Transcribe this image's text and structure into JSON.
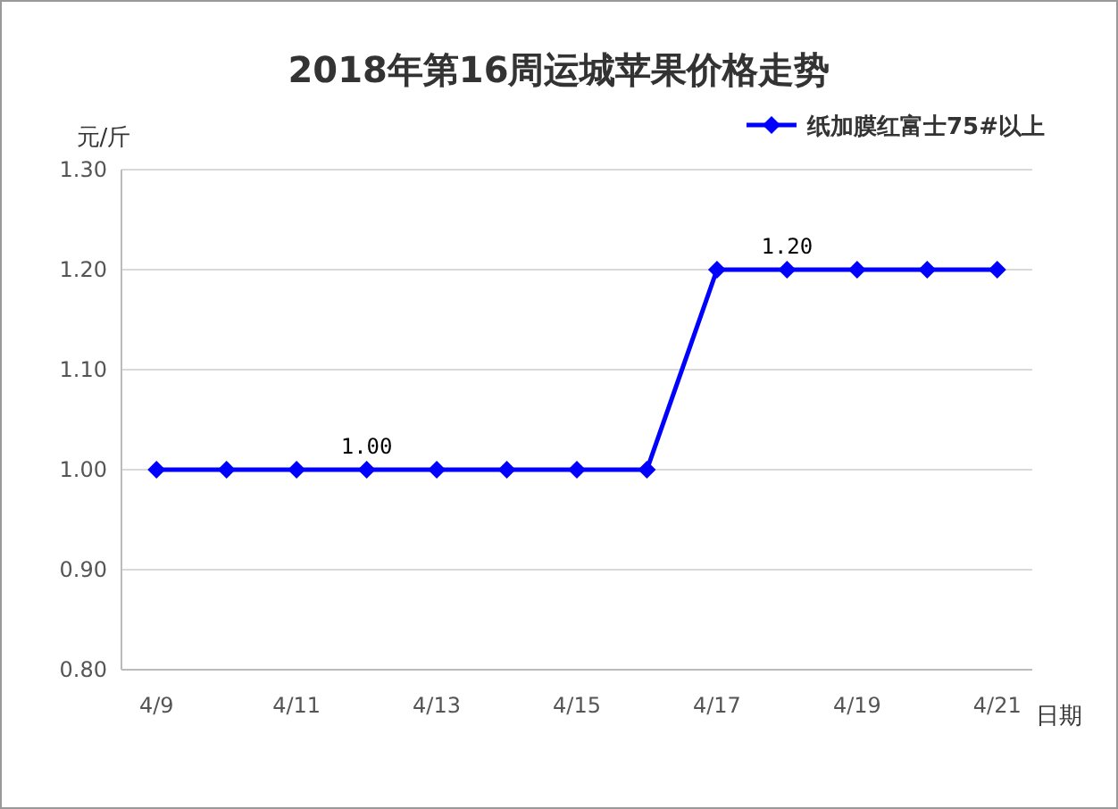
{
  "chart_data": {
    "type": "line",
    "title": "2018年第16周运城苹果价格走势",
    "xlabel": "日期",
    "ylabel": "元/斤",
    "categories": [
      "4/9",
      null,
      "4/11",
      null,
      "4/13",
      null,
      "4/15",
      null,
      "4/17",
      null,
      "4/19",
      null,
      "4/21"
    ],
    "series": [
      {
        "name": "纸加膜红富士75#以上",
        "color": "#0000ff",
        "values": [
          1.0,
          1.0,
          1.0,
          1.0,
          1.0,
          1.0,
          1.0,
          1.0,
          1.2,
          1.2,
          1.2,
          1.2,
          1.2
        ],
        "value_labels": [
          null,
          null,
          null,
          "1.00",
          null,
          null,
          null,
          null,
          null,
          "1.20",
          null,
          null,
          null
        ]
      }
    ],
    "ylim": [
      0.8,
      1.3
    ],
    "yticks": [
      {
        "value": 0.8,
        "label": "0.80"
      },
      {
        "value": 0.9,
        "label": "0.90"
      },
      {
        "value": 1.0,
        "label": "1.00"
      },
      {
        "value": 1.1,
        "label": "1.10"
      },
      {
        "value": 1.2,
        "label": "1.20"
      },
      {
        "value": 1.3,
        "label": "1.30"
      }
    ],
    "grid": "y",
    "legend": "top right",
    "marker": "diamond",
    "line_style": "solid"
  }
}
